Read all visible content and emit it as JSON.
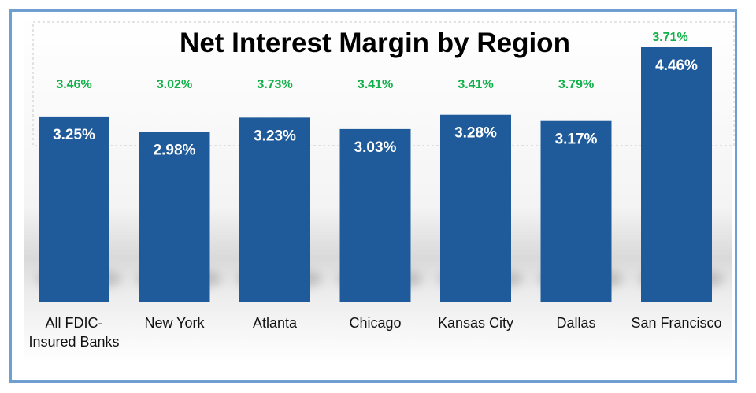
{
  "chart_data": {
    "type": "bar",
    "title": "Net Interest Margin by Region",
    "categories": [
      [
        "All FDIC-",
        "Insured Banks"
      ],
      [
        "New York"
      ],
      [
        "Atlanta"
      ],
      [
        "Chicago"
      ],
      [
        "Kansas City"
      ],
      [
        "Dallas"
      ],
      [
        "San Francisco"
      ]
    ],
    "series": [
      {
        "values": [
          3.25,
          2.98,
          3.23,
          3.03,
          3.28,
          3.17,
          4.46
        ],
        "labels": [
          "3.25%",
          "2.98%",
          "3.23%",
          "3.03%",
          "3.28%",
          "3.17%",
          "4.46%"
        ],
        "color": "#1f5b9b"
      }
    ],
    "comparison_labels": [
      "3.46%",
      "3.02%",
      "3.73%",
      "3.41%",
      "3.41%",
      "3.79%",
      "3.71%"
    ],
    "comparison_color": "#12b04a",
    "ylim": [
      0,
      4.46
    ],
    "legend": false,
    "grid": false
  }
}
